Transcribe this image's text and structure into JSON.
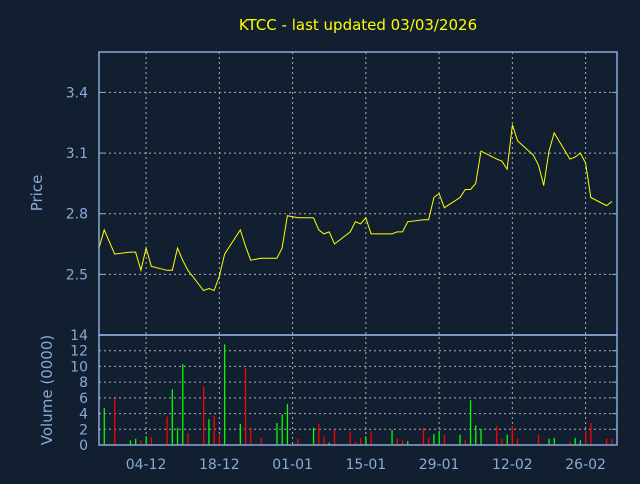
{
  "chart_data": [
    {
      "type": "line",
      "title": "KTCC - last updated 03/03/2026",
      "ylabel": "Price",
      "ylim": [
        2.2,
        3.6
      ],
      "yticks": [
        "2.5",
        "2.8",
        "3.1",
        "3.4"
      ],
      "xlim": [
        "2025-11-25",
        "2026-03-04"
      ],
      "grid": true,
      "colors": {
        "line": "#ffff00",
        "background": "#111f30",
        "axis": "#8aaad8",
        "grid": "#b0b0b0",
        "title": "#ffff00"
      },
      "series": [
        {
          "x": [
            "2025-11-25",
            "2025-11-26",
            "2025-11-28",
            "2025-12-01",
            "2025-12-02",
            "2025-12-03",
            "2025-12-04",
            "2025-12-05",
            "2025-12-08",
            "2025-12-09",
            "2025-12-10",
            "2025-12-11",
            "2025-12-12",
            "2025-12-15",
            "2025-12-16",
            "2025-12-17",
            "2025-12-18",
            "2025-12-19",
            "2025-12-22",
            "2025-12-23",
            "2025-12-24",
            "2025-12-26",
            "2025-12-29",
            "2025-12-30",
            "2025-12-31",
            "2026-01-02",
            "2026-01-05",
            "2026-01-06",
            "2026-01-07",
            "2026-01-08",
            "2026-01-09",
            "2026-01-12",
            "2026-01-13",
            "2026-01-14",
            "2026-01-15",
            "2026-01-16",
            "2026-01-20",
            "2026-01-21",
            "2026-01-22",
            "2026-01-23",
            "2026-01-26",
            "2026-01-27",
            "2026-01-28",
            "2026-01-29",
            "2026-01-30",
            "2026-02-02",
            "2026-02-03",
            "2026-02-04",
            "2026-02-05",
            "2026-02-06",
            "2026-02-09",
            "2026-02-10",
            "2026-02-11",
            "2026-02-12",
            "2026-02-13",
            "2026-02-16",
            "2026-02-17",
            "2026-02-18",
            "2026-02-19",
            "2026-02-20",
            "2026-02-23",
            "2026-02-24",
            "2026-02-25",
            "2026-02-26",
            "2026-02-27",
            "2026-03-02",
            "2026-03-03"
          ],
          "y": [
            2.63,
            2.72,
            2.6,
            2.61,
            2.61,
            2.52,
            2.63,
            2.54,
            2.52,
            2.52,
            2.63,
            2.57,
            2.52,
            2.42,
            2.43,
            2.42,
            2.49,
            2.6,
            2.72,
            2.64,
            2.57,
            2.58,
            2.58,
            2.63,
            2.79,
            2.78,
            2.78,
            2.72,
            2.7,
            2.71,
            2.65,
            2.71,
            2.76,
            2.75,
            2.78,
            2.7,
            2.7,
            2.71,
            2.71,
            2.76,
            2.77,
            2.77,
            2.88,
            2.9,
            2.83,
            2.88,
            2.92,
            2.92,
            2.95,
            3.11,
            3.07,
            3.06,
            3.02,
            3.24,
            3.16,
            3.09,
            3.04,
            2.94,
            3.11,
            3.2,
            3.07,
            3.08,
            3.1,
            3.05,
            2.88,
            2.84,
            2.86
          ]
        }
      ]
    },
    {
      "type": "bar",
      "ylabel": "Volume (0000)",
      "ylim": [
        0,
        14
      ],
      "yticks": [
        "0",
        "2",
        "4",
        "6",
        "8",
        "10",
        "12",
        "14"
      ],
      "xticks": [
        "04-12",
        "18-12",
        "01-01",
        "15-01",
        "29-01",
        "12-02",
        "26-02"
      ],
      "xtick_dates": [
        "2025-12-04",
        "2025-12-18",
        "2026-01-01",
        "2026-01-15",
        "2026-01-29",
        "2026-02-12",
        "2026-02-26"
      ],
      "xlim": [
        "2025-11-25",
        "2026-03-04"
      ],
      "grid": true,
      "colors": {
        "up": "#00ff00",
        "down": "#ff0000"
      },
      "bars": [
        [
          "2025-11-26",
          4.7,
          "up"
        ],
        [
          "2025-11-28",
          5.9,
          "down"
        ],
        [
          "2025-12-01",
          0.6,
          "up"
        ],
        [
          "2025-12-02",
          0.8,
          "up"
        ],
        [
          "2025-12-03",
          0.6,
          "down"
        ],
        [
          "2025-12-04",
          1.1,
          "up"
        ],
        [
          "2025-12-05",
          1.0,
          "down"
        ],
        [
          "2025-12-08",
          3.6,
          "down"
        ],
        [
          "2025-12-09",
          7.1,
          "up"
        ],
        [
          "2025-12-10",
          2.2,
          "up"
        ],
        [
          "2025-12-11",
          10.3,
          "up"
        ],
        [
          "2025-12-12",
          1.5,
          "down"
        ],
        [
          "2025-12-15",
          7.5,
          "down"
        ],
        [
          "2025-12-16",
          3.3,
          "up"
        ],
        [
          "2025-12-17",
          3.7,
          "down"
        ],
        [
          "2025-12-18",
          1.3,
          "down"
        ],
        [
          "2025-12-19",
          12.8,
          "up"
        ],
        [
          "2025-12-22",
          2.7,
          "up"
        ],
        [
          "2025-12-23",
          9.8,
          "down"
        ],
        [
          "2025-12-24",
          2.2,
          "down"
        ],
        [
          "2025-12-26",
          0.9,
          "down"
        ],
        [
          "2025-12-29",
          2.8,
          "up"
        ],
        [
          "2025-12-30",
          3.9,
          "up"
        ],
        [
          "2025-12-31",
          5.2,
          "up"
        ],
        [
          "2026-01-02",
          0.8,
          "down"
        ],
        [
          "2026-01-05",
          2.2,
          "up"
        ],
        [
          "2026-01-06",
          2.7,
          "down"
        ],
        [
          "2026-01-07",
          1.1,
          "down"
        ],
        [
          "2026-01-08",
          0.3,
          "up"
        ],
        [
          "2026-01-09",
          1.9,
          "down"
        ],
        [
          "2026-01-12",
          1.7,
          "down"
        ],
        [
          "2026-01-13",
          0.4,
          "down"
        ],
        [
          "2026-01-14",
          0.9,
          "down"
        ],
        [
          "2026-01-15",
          1.1,
          "up"
        ],
        [
          "2026-01-16",
          1.7,
          "down"
        ],
        [
          "2026-01-20",
          1.9,
          "up"
        ],
        [
          "2026-01-21",
          0.8,
          "down"
        ],
        [
          "2026-01-22",
          0.6,
          "down"
        ],
        [
          "2026-01-23",
          0.5,
          "up"
        ],
        [
          "2026-01-26",
          2.2,
          "down"
        ],
        [
          "2026-01-27",
          0.9,
          "down"
        ],
        [
          "2026-01-28",
          1.4,
          "up"
        ],
        [
          "2026-01-29",
          1.8,
          "up"
        ],
        [
          "2026-01-30",
          1.3,
          "down"
        ],
        [
          "2026-02-02",
          1.3,
          "up"
        ],
        [
          "2026-02-03",
          0.6,
          "down"
        ],
        [
          "2026-02-04",
          5.7,
          "up"
        ],
        [
          "2026-02-05",
          2.5,
          "up"
        ],
        [
          "2026-02-06",
          2.0,
          "up"
        ],
        [
          "2026-02-09",
          2.4,
          "down"
        ],
        [
          "2026-02-10",
          0.8,
          "down"
        ],
        [
          "2026-02-11",
          1.3,
          "up"
        ],
        [
          "2026-02-12",
          2.4,
          "down"
        ],
        [
          "2026-02-13",
          0.8,
          "down"
        ],
        [
          "2026-02-17",
          1.3,
          "down"
        ],
        [
          "2026-02-18",
          0.1,
          "down"
        ],
        [
          "2026-02-19",
          0.8,
          "up"
        ],
        [
          "2026-02-20",
          0.9,
          "up"
        ],
        [
          "2026-02-23",
          0.4,
          "down"
        ],
        [
          "2026-02-24",
          0.9,
          "up"
        ],
        [
          "2026-02-25",
          0.6,
          "up"
        ],
        [
          "2026-02-26",
          1.8,
          "down"
        ],
        [
          "2026-02-27",
          2.8,
          "down"
        ],
        [
          "2026-03-02",
          0.8,
          "down"
        ],
        [
          "2026-03-03",
          0.8,
          "down"
        ]
      ]
    }
  ]
}
